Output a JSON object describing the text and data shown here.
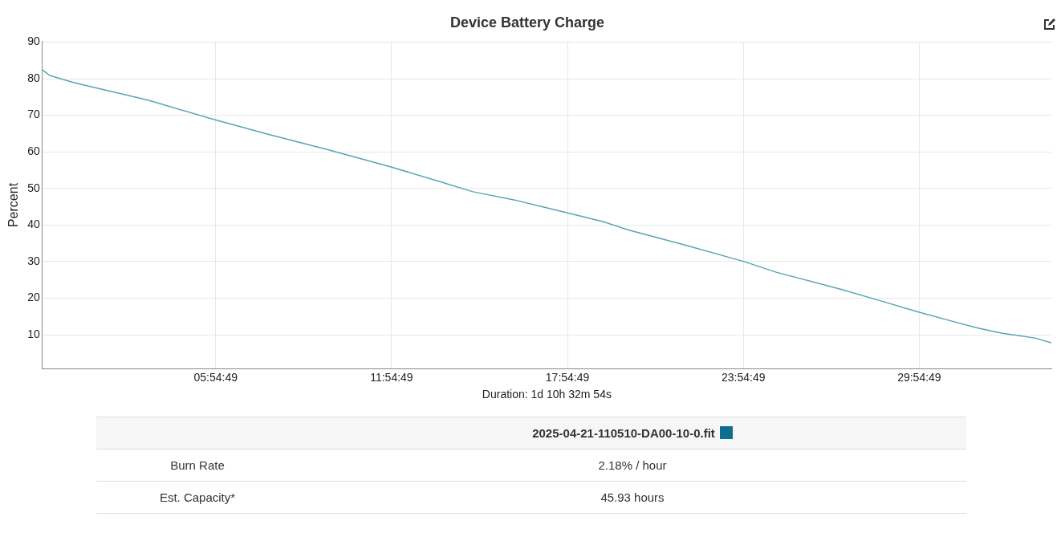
{
  "chart_data": {
    "type": "line",
    "title": "Device Battery Charge",
    "xlabel": "Duration: 1d 10h 32m 54s",
    "ylabel": "Percent",
    "x": [
      0,
      0.25,
      1.08,
      3.58,
      5.92,
      7.75,
      9.69,
      11.92,
      13.58,
      14.69,
      16.08,
      17.92,
      19.14,
      19.97,
      21.97,
      23.94,
      25.03,
      27.25,
      28.58,
      29.89,
      31.08,
      31.92,
      32.75,
      33.86,
      34.42
    ],
    "series": [
      {
        "name": "2025-04-21-110510-DA00-10-0.fit",
        "color": "#5ba3b5",
        "values": [
          82.4,
          80.9,
          78.9,
          74.2,
          68.7,
          64.7,
          60.7,
          55.8,
          51.8,
          49.1,
          46.9,
          43.3,
          40.9,
          38.7,
          34.4,
          30,
          27.1,
          22.4,
          19.3,
          16.2,
          13.6,
          11.8,
          10.4,
          9.1,
          7.8
        ]
      }
    ],
    "xlim": [
      0,
      34.42
    ],
    "xticks": [
      {
        "value": 5.9136,
        "label": "05:54:49"
      },
      {
        "value": 11.9136,
        "label": "11:54:49"
      },
      {
        "value": 17.9136,
        "label": "17:54:49"
      },
      {
        "value": 23.9136,
        "label": "23:54:49"
      },
      {
        "value": 29.9136,
        "label": "29:54:49"
      }
    ],
    "ylim": [
      0.7,
      90.2
    ],
    "yticks": [
      10,
      20,
      30,
      40,
      50,
      60,
      70,
      80,
      90
    ],
    "grid": true,
    "legend": "bottom",
    "marker": "none",
    "line_style": "solid",
    "annotations": [
      "Burn Rate",
      "2.18% / hour",
      "Est. Capacity*",
      "45.93 hours"
    ]
  }
}
